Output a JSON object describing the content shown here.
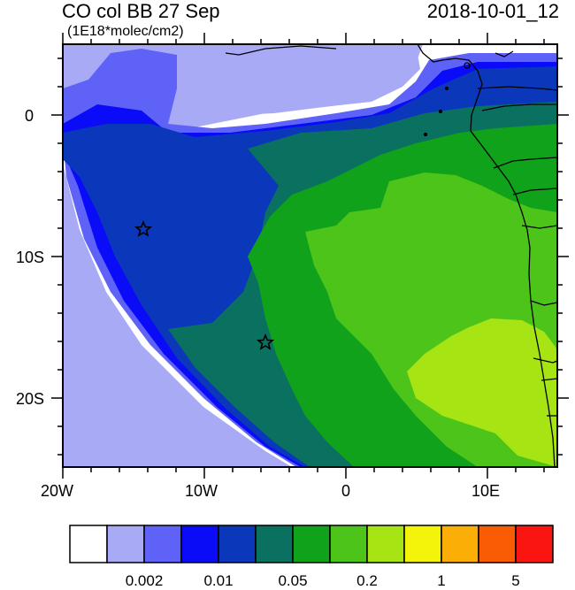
{
  "title": {
    "field": "CO col BB 27 Sep",
    "units": "(1E18*molec/cm2)",
    "datetime": "2018-10-01_12"
  },
  "axes": {
    "x_ticks": [
      "20W",
      "10W",
      "0",
      "10E"
    ],
    "y_ticks": [
      "0",
      "10S",
      "20S"
    ],
    "lon_range": [
      -20,
      15
    ],
    "lat_range": [
      -25,
      5
    ]
  },
  "colorbar": {
    "colors": [
      "#ffffff",
      "#a8aaf5",
      "#5f62f7",
      "#0a0cf7",
      "#0b37bb",
      "#0a7060",
      "#10a21a",
      "#4cc41a",
      "#a6e414",
      "#f4f40a",
      "#fbae05",
      "#fa5b05",
      "#fb1510"
    ],
    "labels": [
      "0.002",
      "0.01",
      "0.05",
      "0.2",
      "1",
      "5"
    ]
  },
  "markers": [
    {
      "name": "star-marker-1",
      "lon": -14.3,
      "lat": -8.0
    },
    {
      "name": "star-marker-2",
      "lon": -5.8,
      "lat": -16.0
    }
  ]
}
